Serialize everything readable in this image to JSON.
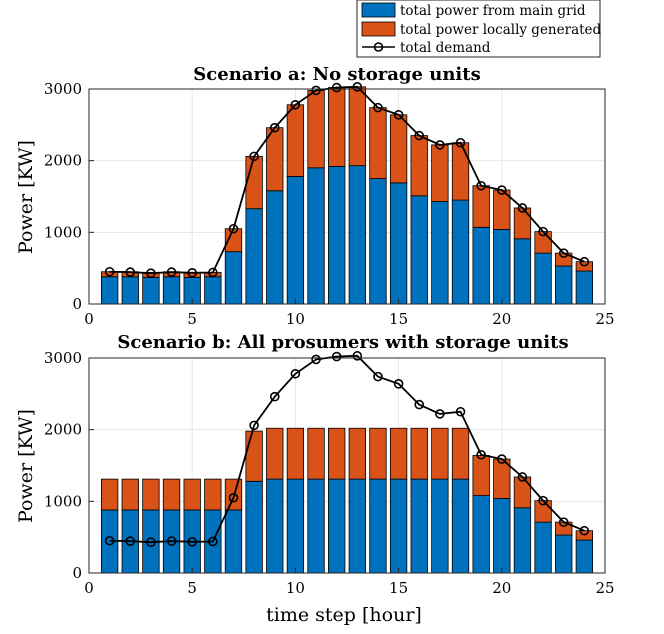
{
  "legend": {
    "grid_label": "total power from main grid",
    "local_label": "total power locally generated",
    "demand_label": "total demand"
  },
  "colors": {
    "grid": "#0072BD",
    "local": "#D95319",
    "demand": "#000000"
  },
  "chart_data": [
    {
      "type": "bar",
      "stacked": true,
      "title": "Scenario a: No storage units",
      "xlabel": "",
      "ylabel": "Power [KW]",
      "xlim": [
        0,
        25
      ],
      "ylim": [
        0,
        3000
      ],
      "xticks": [
        0,
        5,
        10,
        15,
        20,
        25
      ],
      "yticks": [
        0,
        1000,
        2000,
        3000
      ],
      "x": [
        1,
        2,
        3,
        4,
        5,
        6,
        7,
        8,
        9,
        10,
        11,
        12,
        13,
        14,
        15,
        16,
        17,
        18,
        19,
        20,
        21,
        22,
        23,
        24
      ],
      "series": [
        {
          "name": "total power from main grid",
          "values": [
            380,
            380,
            370,
            380,
            370,
            380,
            730,
            1330,
            1580,
            1780,
            1900,
            1920,
            1930,
            1750,
            1690,
            1510,
            1430,
            1450,
            1070,
            1040,
            910,
            710,
            530,
            460
          ]
        },
        {
          "name": "total power locally generated",
          "values": [
            70,
            70,
            70,
            70,
            70,
            60,
            320,
            730,
            880,
            1000,
            1080,
            1100,
            1100,
            990,
            950,
            840,
            790,
            800,
            580,
            550,
            430,
            300,
            180,
            130
          ]
        },
        {
          "name": "total demand",
          "type": "line",
          "values": [
            450,
            445,
            430,
            445,
            435,
            440,
            1050,
            2060,
            2460,
            2780,
            2980,
            3020,
            3030,
            2740,
            2640,
            2350,
            2220,
            2250,
            1650,
            1590,
            1340,
            1010,
            710,
            590
          ]
        }
      ]
    },
    {
      "type": "bar",
      "stacked": true,
      "title": "Scenario b: All prosumers with storage units",
      "xlabel": "time step [hour]",
      "ylabel": "Power [KW]",
      "xlim": [
        0,
        25
      ],
      "ylim": [
        0,
        3000
      ],
      "xticks": [
        0,
        5,
        10,
        15,
        20,
        25
      ],
      "yticks": [
        0,
        1000,
        2000,
        3000
      ],
      "x": [
        1,
        2,
        3,
        4,
        5,
        6,
        7,
        8,
        9,
        10,
        11,
        12,
        13,
        14,
        15,
        16,
        17,
        18,
        19,
        20,
        21,
        22,
        23,
        24
      ],
      "series": [
        {
          "name": "total power from main grid",
          "values": [
            880,
            880,
            880,
            880,
            880,
            880,
            880,
            1280,
            1310,
            1310,
            1310,
            1310,
            1310,
            1310,
            1310,
            1310,
            1310,
            1310,
            1080,
            1040,
            910,
            710,
            530,
            460
          ]
        },
        {
          "name": "total power locally generated",
          "values": [
            430,
            430,
            430,
            430,
            430,
            430,
            430,
            700,
            710,
            710,
            710,
            710,
            710,
            710,
            710,
            710,
            710,
            710,
            560,
            550,
            430,
            300,
            180,
            130
          ]
        },
        {
          "name": "total demand",
          "type": "line",
          "values": [
            450,
            445,
            430,
            445,
            435,
            440,
            1050,
            2060,
            2460,
            2780,
            2980,
            3020,
            3030,
            2740,
            2640,
            2350,
            2220,
            2250,
            1650,
            1590,
            1340,
            1010,
            710,
            590
          ]
        }
      ]
    }
  ]
}
